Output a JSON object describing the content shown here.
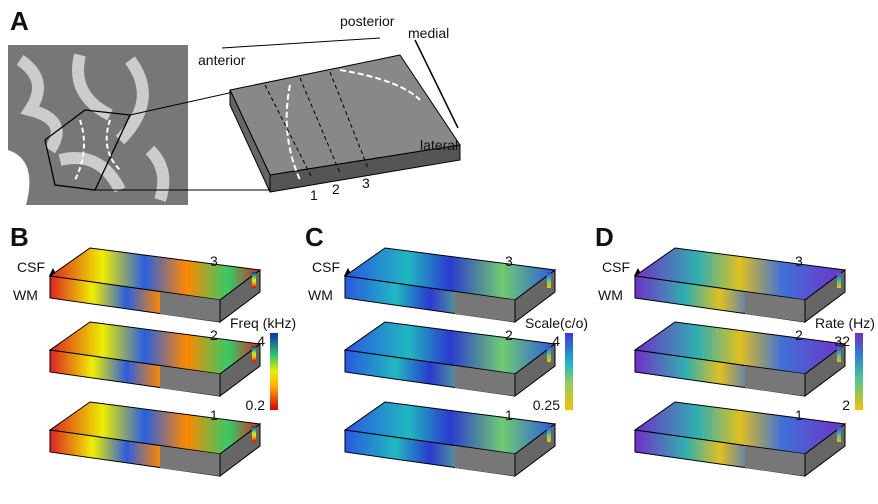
{
  "panel_a": {
    "label": "A",
    "posterior": "posterior",
    "medial": "medial",
    "anterior": "anterior",
    "lateral": "lateral",
    "slice_labels": [
      "1",
      "2",
      "3"
    ]
  },
  "panels": [
    {
      "label": "B",
      "csf": "CSF",
      "wm": "WM",
      "slab_labels": [
        "3",
        "2",
        "1"
      ],
      "colorbar": {
        "title": "Freq (kHz)",
        "max": 4,
        "min": 0.2
      }
    },
    {
      "label": "C",
      "csf": "CSF",
      "wm": "WM",
      "slab_labels": [
        "3",
        "2",
        "1"
      ],
      "colorbar": {
        "title": "Scale(c/o)",
        "max": 4,
        "min": 0.25
      }
    },
    {
      "label": "D",
      "csf": "CSF",
      "wm": "WM",
      "slab_labels": [
        "3",
        "2",
        "1"
      ],
      "colorbar": {
        "title": "Rate (Hz)",
        "max": 32,
        "min": 2
      }
    }
  ]
}
